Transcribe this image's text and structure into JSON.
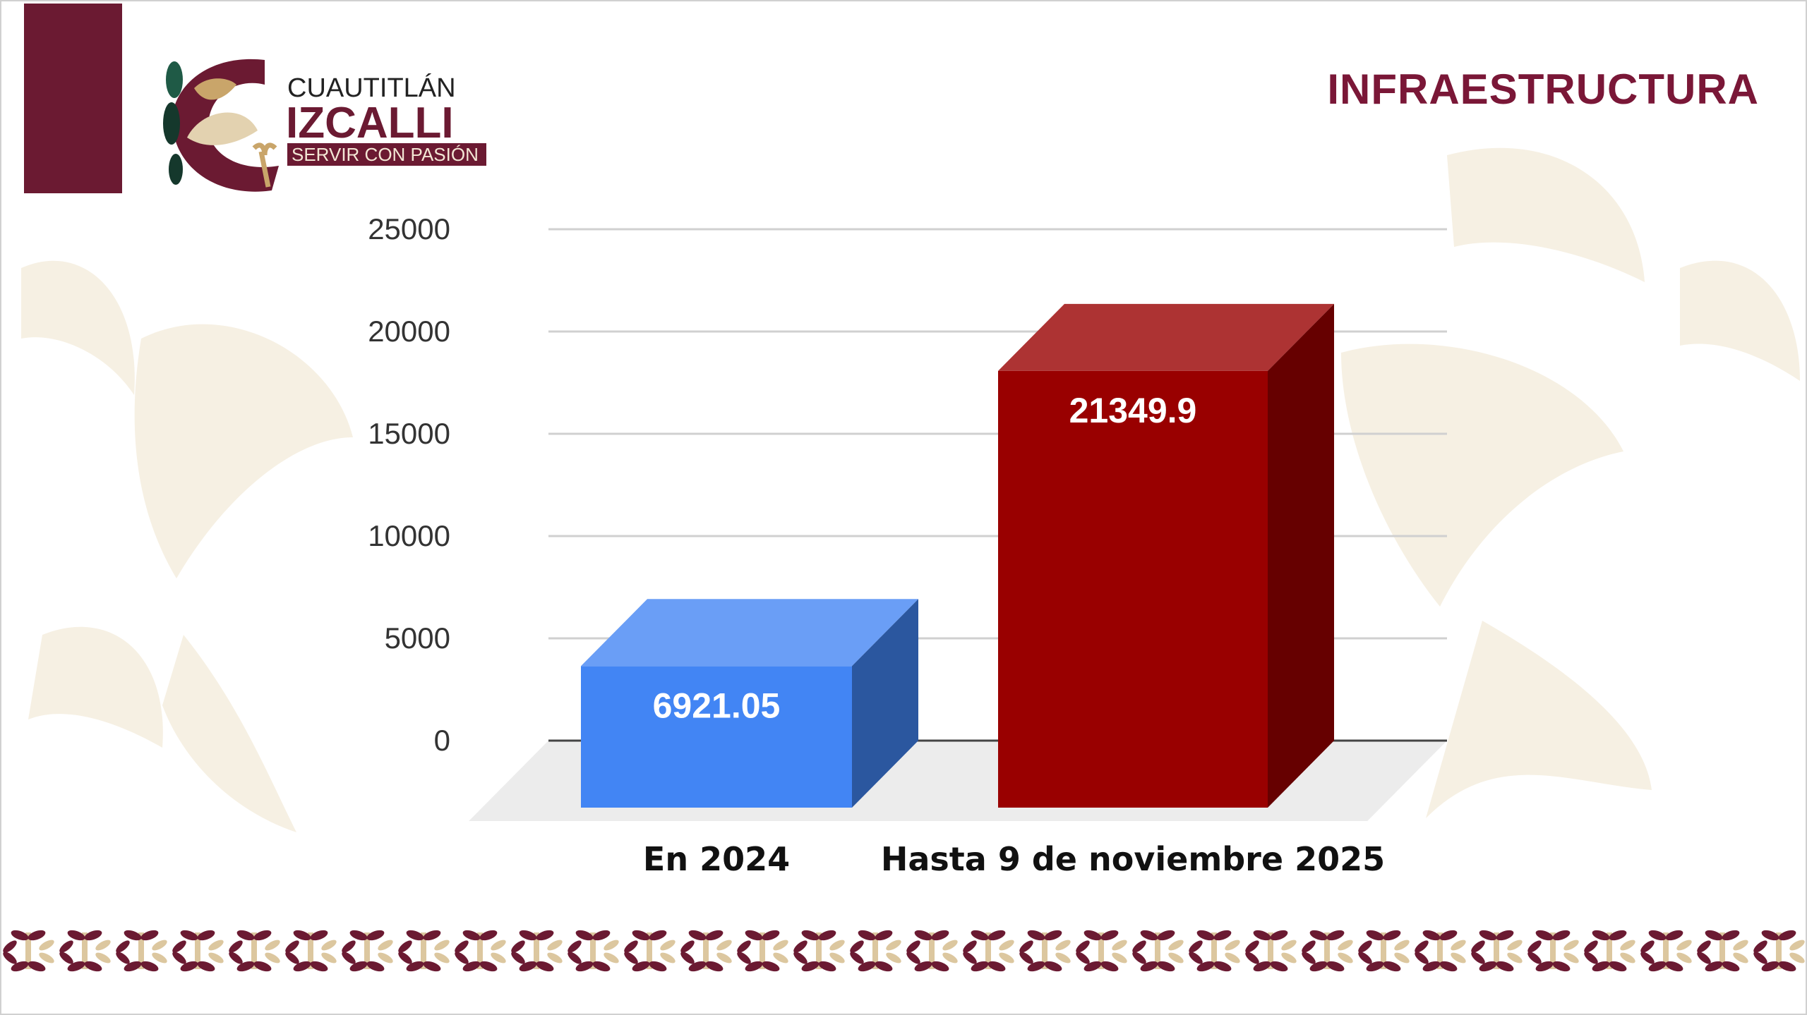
{
  "header": {
    "title": "INFRAESTRUCTURA",
    "logo_text": {
      "line1": "CUAUTITLÁN",
      "line2": "IZCALLI",
      "tagline": "SERVIR CON PASIÓN"
    }
  },
  "colors": {
    "maroon": "#6b1a32",
    "gold": "#d9c49a",
    "green": "#1f5a46"
  },
  "chart_data": {
    "type": "bar",
    "style": "3d",
    "categories": [
      "En 2024",
      "Hasta 9 de noviembre 2025"
    ],
    "values": [
      6921.05,
      21349.9
    ],
    "data_labels": [
      "6921.05",
      "21349.9"
    ],
    "bar_colors": [
      "#4285f4",
      "#990000"
    ],
    "yticks": [
      "0",
      "5000",
      "10000",
      "15000",
      "20000",
      "25000"
    ],
    "ylim": [
      0,
      25000
    ],
    "grid": true,
    "title": "",
    "xlabel": "",
    "ylabel": ""
  }
}
